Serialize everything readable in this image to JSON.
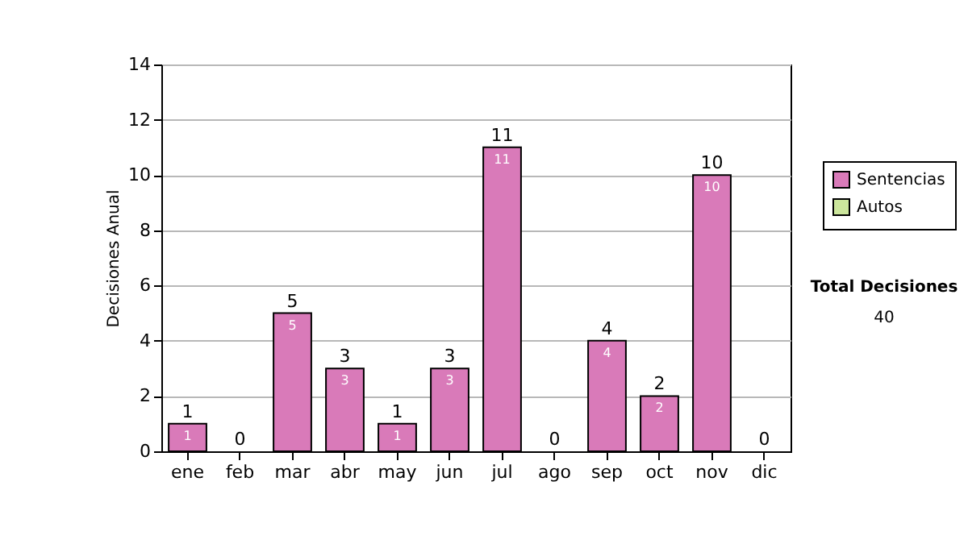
{
  "chart_data": {
    "type": "bar",
    "stacked": true,
    "ylabel": "Decisiones Anual",
    "categories": [
      "ene",
      "feb",
      "mar",
      "abr",
      "may",
      "jun",
      "jul",
      "ago",
      "sep",
      "oct",
      "nov",
      "dic"
    ],
    "series": [
      {
        "name": "Sentencias",
        "color": "#d97ab9",
        "values": [
          1,
          0,
          5,
          3,
          1,
          3,
          11,
          0,
          4,
          2,
          10,
          0
        ],
        "value_labels": [
          "1",
          null,
          "5",
          "3",
          "1",
          "3",
          "11",
          null,
          "4",
          "2",
          "10",
          null
        ]
      },
      {
        "name": "Autos",
        "color": "#cce69c",
        "values": [
          0,
          0,
          0,
          0,
          0,
          0,
          0,
          0,
          0,
          0,
          0,
          0
        ]
      }
    ],
    "totals": [
      "1",
      "0",
      "5",
      "3",
      "1",
      "3",
      "11",
      "0",
      "4",
      "2",
      "10",
      "0"
    ],
    "ylim": [
      0,
      14
    ],
    "yticks": [
      0,
      2,
      4,
      6,
      8,
      10,
      12,
      14
    ],
    "grid": "y",
    "legend": "right",
    "annotations": [
      "Total Decisiones",
      "40"
    ]
  }
}
